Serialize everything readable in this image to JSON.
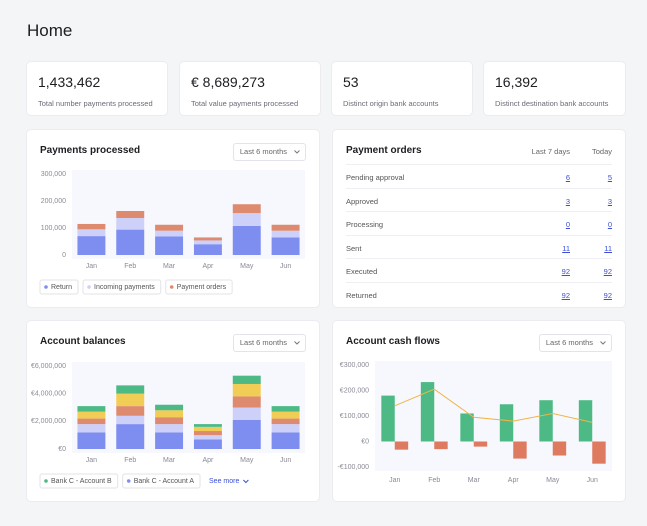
{
  "header": {
    "title": "Home"
  },
  "kpis": [
    {
      "value": "1,433,462",
      "label": "Total number payments processed"
    },
    {
      "value": "€ 8,689,273",
      "label": "Total value payments processed"
    },
    {
      "value": "53",
      "label": "Distinct origin bank accounts"
    },
    {
      "value": "16,392",
      "label": "Distinct destination bank accounts"
    }
  ],
  "payments_processed": {
    "title": "Payments processed",
    "range": "Last 6 months",
    "chart_data": {
      "type": "bar",
      "stacked": true,
      "categories": [
        "Jan",
        "Feb",
        "Mar",
        "Apr",
        "May",
        "Jun"
      ],
      "series": [
        {
          "name": "Return",
          "color": "#7d8ef0",
          "values": [
            70000,
            94000,
            69000,
            40000,
            108000,
            65000
          ]
        },
        {
          "name": "Incoming payments",
          "color": "#cdd0f8",
          "values": [
            25000,
            43000,
            21000,
            14000,
            47000,
            25000
          ]
        },
        {
          "name": "Payment orders",
          "color": "#de8a6f",
          "values": [
            20000,
            26000,
            22000,
            11000,
            33000,
            22000
          ]
        }
      ],
      "ylim": [
        0,
        300000
      ],
      "yticks": [
        0,
        {
          "value": 100000,
          "label": "100,000"
        },
        {
          "value": 200000,
          "label": "200,000"
        },
        {
          "value": 300000,
          "label": "300,000"
        }
      ],
      "grid": false
    }
  },
  "payment_orders": {
    "title": "Payment orders",
    "columns": [
      "Last 7 days",
      "Today"
    ],
    "rows": [
      [
        "Pending approval",
        6,
        5
      ],
      [
        "Approved",
        3,
        3
      ],
      [
        "Processing",
        0,
        0
      ],
      [
        "Sent",
        11,
        11
      ],
      [
        "Executed",
        92,
        92
      ],
      [
        "Returned",
        92,
        92
      ]
    ]
  },
  "account_balances": {
    "title": "Account balances",
    "range": "Last 6 months",
    "see_more": "See more",
    "chart_data": {
      "type": "bar",
      "stacked": true,
      "categories": [
        "Jan",
        "Feb",
        "Mar",
        "Apr",
        "May",
        "Jun"
      ],
      "series": [
        {
          "name": "Bank C - Account A",
          "color": "#7d8ef0",
          "values": [
            1200000,
            1800000,
            1200000,
            700000,
            2100000,
            1200000
          ]
        },
        {
          "color": "#cdd0f8",
          "values": [
            600000,
            600000,
            600000,
            300000,
            900000,
            600000
          ]
        },
        {
          "color": "#de8a6f",
          "values": [
            400000,
            700000,
            500000,
            300000,
            800000,
            400000
          ]
        },
        {
          "color": "#f2cd55",
          "values": [
            500000,
            900000,
            500000,
            300000,
            900000,
            500000
          ]
        },
        {
          "name": "Bank C - Account B",
          "color": "#4dba86",
          "values": [
            400000,
            600000,
            400000,
            200000,
            600000,
            400000
          ]
        }
      ],
      "ylim": [
        0,
        6000000
      ],
      "yticks": [
        {
          "value": 0,
          "label": "€0"
        },
        {
          "value": 2000000,
          "label": "€2,000,000"
        },
        {
          "value": 4000000,
          "label": "€4,000,000"
        },
        {
          "value": 6000000,
          "label": "€6,000,000"
        }
      ],
      "grid": false
    }
  },
  "account_cash_flows": {
    "title": "Account cash flows",
    "range": "Last 6 months",
    "chart_data": {
      "type": "bar",
      "stacked": false,
      "categories": [
        "Jan",
        "Feb",
        "Mar",
        "Apr",
        "May",
        "Jun"
      ],
      "series": [
        {
          "color": "#4dba86",
          "values": [
            180000,
            233000,
            110000,
            146000,
            162000,
            162000
          ]
        },
        {
          "color": "#de7a5f",
          "values": [
            -32000,
            -30000,
            -20000,
            -67000,
            -55000,
            -87000
          ]
        },
        {
          "type": "line",
          "color": "#f0b44a",
          "values": [
            140000,
            205000,
            95000,
            80000,
            110000,
            75000
          ]
        }
      ],
      "ylim": [
        -100000,
        300000
      ],
      "yticks": [
        {
          "value": -100000,
          "label": "-€100,000"
        },
        {
          "value": 0,
          "label": "€0"
        },
        {
          "value": 100000,
          "label": "€100,000"
        },
        {
          "value": 200000,
          "label": "€200,000"
        },
        {
          "value": 300000,
          "label": "€300,000"
        }
      ],
      "grid": false
    }
  }
}
